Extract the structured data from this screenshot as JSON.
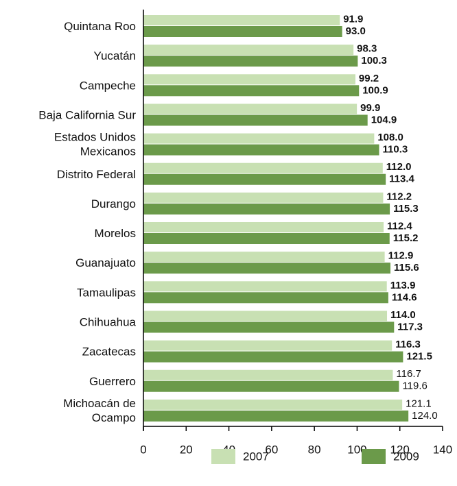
{
  "chart_data": {
    "type": "hbar",
    "categories": [
      "Quintana Roo",
      "Yucatán",
      "Campeche",
      "Baja California Sur",
      "Estados Unidos\nMexicanos",
      "Distrito Federal",
      "Durango",
      "Morelos",
      "Guanajuato",
      "Tamaulipas",
      "Chihuahua",
      "Zacatecas",
      "Guerrero",
      "Michoacán de\nOcampo"
    ],
    "series": [
      {
        "name": "2007",
        "color": "#c8e0b3",
        "values": [
          91.9,
          98.3,
          99.2,
          99.9,
          108.0,
          112.0,
          112.2,
          112.4,
          112.9,
          113.9,
          114.0,
          116.3,
          116.7,
          121.1
        ],
        "value_labels": [
          "91.9",
          "98.3",
          "99.2",
          "99.9",
          "108.0",
          "112.0",
          "112.2",
          "112.4",
          "112.9",
          "113.9",
          "114.0",
          "116.3",
          "116.7",
          "121.1"
        ]
      },
      {
        "name": "2009",
        "color": "#6b9a4a",
        "values": [
          93.0,
          100.3,
          100.9,
          104.9,
          110.3,
          113.4,
          115.3,
          115.2,
          115.6,
          114.6,
          117.3,
          121.5,
          119.6,
          124.0
        ],
        "value_labels": [
          "93.0",
          "100.3",
          "100.9",
          "104.9",
          "110.3",
          "113.4",
          "115.3",
          "115.2",
          "115.6",
          "114.6",
          "117.3",
          "121.5",
          "119.6",
          "124.0"
        ]
      }
    ],
    "xlim": [
      0,
      140
    ],
    "xticks": [
      0,
      20,
      40,
      60,
      80,
      100,
      120,
      140
    ],
    "legend": "bottom"
  }
}
